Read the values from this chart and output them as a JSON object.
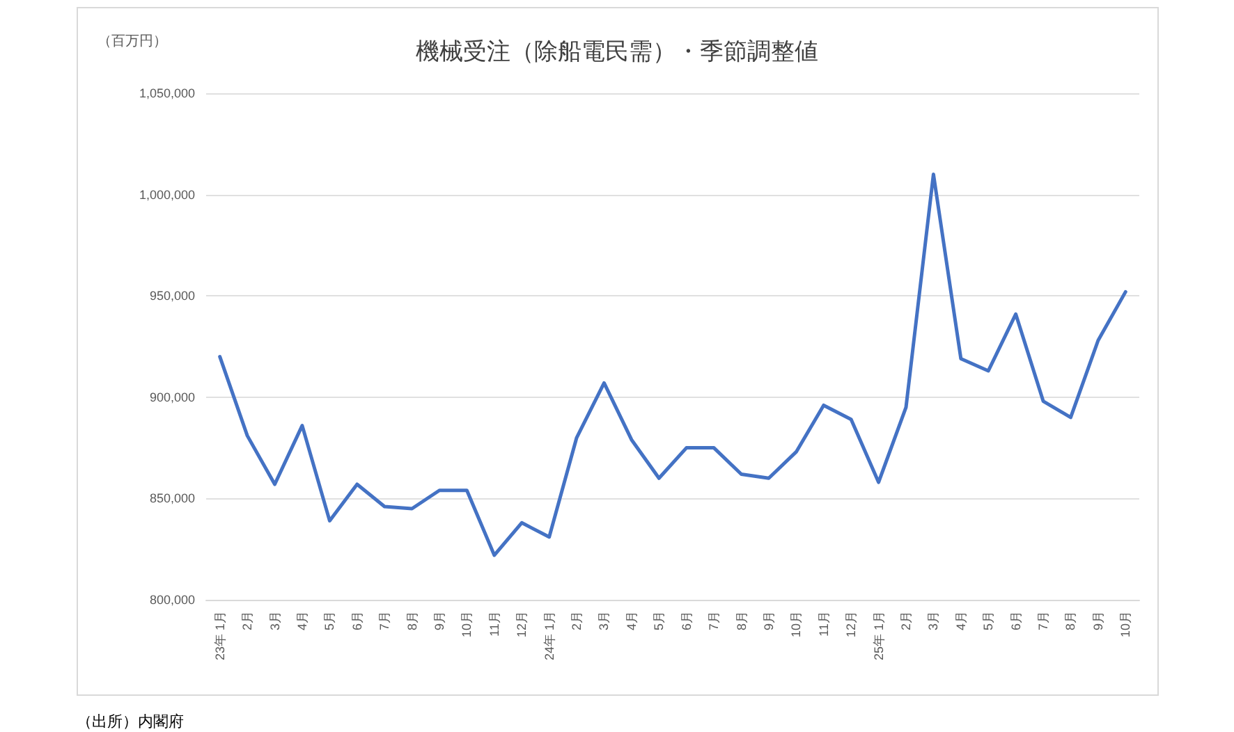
{
  "chart_data": {
    "type": "line",
    "title": "機械受注（除船電民需）・季節調整値",
    "ylabel": "（百万円）",
    "annotations": [
      "（出所）内閣府"
    ],
    "categories": [
      "23年 1月",
      "2月",
      "3月",
      "4月",
      "5月",
      "6月",
      "7月",
      "8月",
      "9月",
      "10月",
      "11月",
      "12月",
      "24年 1月",
      "2月",
      "3月",
      "4月",
      "5月",
      "6月",
      "7月",
      "8月",
      "9月",
      "10月",
      "11月",
      "12月",
      "25年 1月",
      "2月",
      "3月",
      "4月",
      "5月",
      "6月",
      "7月",
      "8月",
      "9月",
      "10月"
    ],
    "series": [
      {
        "color": "#4472c4",
        "values": [
          920000,
          881000,
          857000,
          886000,
          839000,
          857000,
          846000,
          845000,
          854000,
          854000,
          822000,
          838000,
          831000,
          880000,
          907000,
          879000,
          860000,
          875000,
          875000,
          862000,
          860000,
          873000,
          896000,
          889000,
          858000,
          895000,
          1010000,
          919000,
          913000,
          941000,
          898000,
          890000,
          928000,
          952000
        ]
      }
    ],
    "ylim": [
      800000,
      1050000
    ],
    "yticks": [
      {
        "value": 800000,
        "label": "800,000"
      },
      {
        "value": 850000,
        "label": "850,000"
      },
      {
        "value": 900000,
        "label": "900,000"
      },
      {
        "value": 950000,
        "label": "950,000"
      },
      {
        "value": 1000000,
        "label": "1,000,000"
      },
      {
        "value": 1050000,
        "label": "1,050,000"
      }
    ],
    "grid": "y",
    "marker": "none",
    "line_style": "solid"
  }
}
